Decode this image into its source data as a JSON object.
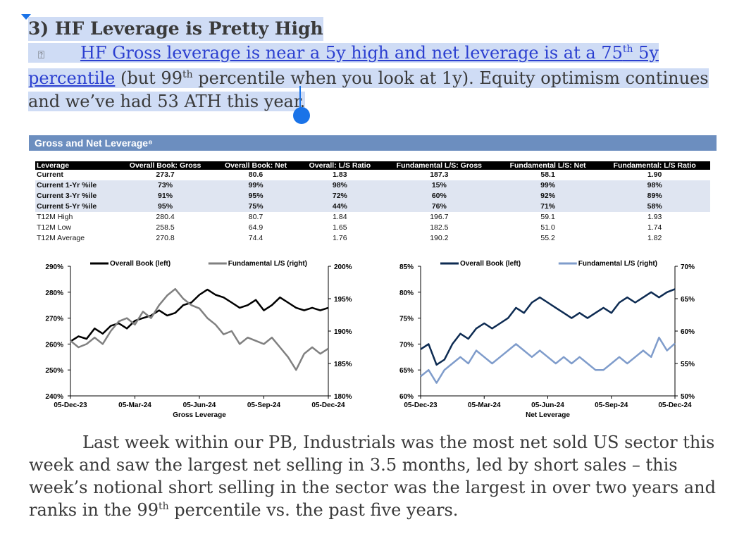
{
  "heading": "3) HF Leverage is Pretty High",
  "bullet_glyph": "⍰",
  "bullet": {
    "link_part1": "HF Gross leverage is near a 5y high and net leverage is at a 75",
    "link_sup": "th",
    "link_part2": " 5y",
    "link_part3": "percentile",
    "rest1": " (but 99",
    "rest_sup": "th",
    "rest2": " percentile when you look at 1y). Equity optimism continues",
    "line3": "and we’ve had 53 ATH this year."
  },
  "figure": {
    "title": "Gross and Net Leverage⁸",
    "table": {
      "headers": [
        "Leverage",
        "Overall Book: Gross",
        "Overall Book: Net",
        "Overall: L/S Ratio",
        "Fundamental L/S: Gross",
        "Fundamental L/S: Net",
        "Fundamental: L/S Ratio"
      ],
      "rows": [
        [
          "Current",
          "273.7",
          "80.6",
          "1.83",
          "187.3",
          "58.1",
          "1.90"
        ],
        [
          "Current 1-Yr %ile",
          "73%",
          "99%",
          "98%",
          "15%",
          "99%",
          "98%"
        ],
        [
          "Current 3-Yr %ile",
          "91%",
          "95%",
          "72%",
          "60%",
          "92%",
          "89%"
        ],
        [
          "Current 5-Yr %ile",
          "95%",
          "75%",
          "44%",
          "76%",
          "71%",
          "58%"
        ],
        [
          "T12M High",
          "280.4",
          "80.7",
          "1.84",
          "196.7",
          "59.1",
          "1.93"
        ],
        [
          "T12M Low",
          "258.5",
          "64.9",
          "1.65",
          "182.5",
          "51.0",
          "1.74"
        ],
        [
          "T12M Average",
          "270.8",
          "74.4",
          "1.76",
          "190.2",
          "55.2",
          "1.82"
        ]
      ]
    }
  },
  "chart_data": [
    {
      "type": "line",
      "title": "",
      "xlabel": "Gross Leverage",
      "x_ticks": [
        "05-Dec-23",
        "05-Mar-24",
        "05-Jun-24",
        "05-Sep-24",
        "05-Dec-24"
      ],
      "y_left_ticks": [
        "240%",
        "250%",
        "260%",
        "270%",
        "280%",
        "290%"
      ],
      "y_right_ticks": [
        "180%",
        "185%",
        "190%",
        "195%",
        "200%"
      ],
      "ylim_left": [
        240,
        290
      ],
      "ylim_right": [
        180,
        200
      ],
      "legend": "top-center",
      "series": [
        {
          "name": "Overall Book (left)",
          "axis": "left",
          "color": "#000000",
          "values": [
            261,
            263,
            262,
            266,
            264,
            267,
            268,
            266,
            269,
            270,
            271,
            273,
            271,
            272,
            275,
            276,
            279,
            281,
            279,
            278,
            276,
            274,
            275,
            277,
            273,
            275,
            278,
            276,
            274,
            273,
            274,
            273,
            274
          ]
        },
        {
          "name": "Fundamental L/S (right)",
          "axis": "right",
          "color": "#808080",
          "values": [
            188.5,
            187.5,
            188,
            189,
            188,
            190,
            191.5,
            192,
            191,
            193,
            192,
            194,
            195.5,
            196.5,
            195,
            194,
            193.5,
            192,
            191,
            189.5,
            190,
            188,
            189,
            188.5,
            188,
            189,
            187.5,
            186,
            184,
            186.5,
            187.5,
            186.5,
            187.3
          ]
        }
      ]
    },
    {
      "type": "line",
      "title": "",
      "xlabel": "Net Leverage",
      "x_ticks": [
        "05-Dec-23",
        "05-Mar-24",
        "05-Jun-24",
        "05-Sep-24",
        "05-Dec-24"
      ],
      "y_left_ticks": [
        "60%",
        "65%",
        "70%",
        "75%",
        "80%",
        "85%"
      ],
      "y_right_ticks": [
        "50%",
        "55%",
        "60%",
        "65%",
        "70%"
      ],
      "ylim_left": [
        60,
        85
      ],
      "ylim_right": [
        50,
        70
      ],
      "legend": "top-center",
      "series": [
        {
          "name": "Overall Book (left)",
          "axis": "left",
          "color": "#0d2b52",
          "values": [
            69,
            70,
            66,
            67,
            70,
            72,
            71,
            73,
            74,
            73,
            74,
            75,
            77,
            76,
            78,
            79,
            78,
            77,
            76,
            75,
            76,
            75,
            76,
            77,
            76,
            78,
            79,
            78,
            79,
            80,
            79,
            80,
            80.6
          ]
        },
        {
          "name": "Fundamental L/S (right)",
          "axis": "right",
          "color": "#7f9ccb",
          "values": [
            53,
            54,
            52,
            54,
            55,
            56,
            55,
            57,
            56,
            55,
            56,
            57,
            58,
            57,
            56,
            57,
            56,
            55,
            56,
            55,
            56,
            55,
            54,
            54,
            55,
            56,
            55,
            56,
            57,
            56,
            59,
            57,
            58.1
          ]
        }
      ]
    }
  ],
  "body": {
    "part1": "Last week within our PB, Industrials was the most net sold US sector this week and saw the largest net selling in 3.5 months, led by short sales – this week’s notional short selling in the sector was the largest in over two years and ranks in the 99",
    "sup": "th",
    "part2": " percentile vs. the past five years."
  },
  "colors": {
    "selection": "#cfdcf5",
    "link": "#2b3fd0",
    "caret": "#1a73e8",
    "figure_header": "#6c8ebf"
  }
}
